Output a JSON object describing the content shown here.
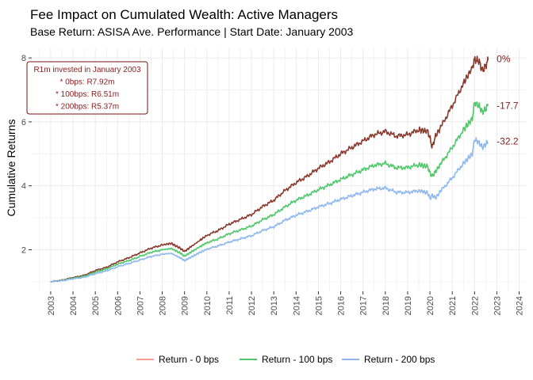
{
  "chart_data": {
    "type": "line",
    "title": "Fee Impact on Cumulated Wealth: Active Managers",
    "subtitle": "Base Return: ASISA Ave. Performance | Start Date: January 2003",
    "xlabel": "",
    "ylabel": "Cumulative Returns",
    "xlim": [
      2002.15,
      2024.3
    ],
    "ylim": [
      0.7,
      8.3
    ],
    "grid": true,
    "legend_position": "bottom",
    "x_ticks": [
      "2003",
      "2004",
      "2005",
      "2006",
      "2007",
      "2008",
      "2009",
      "2010",
      "2011",
      "2012",
      "2013",
      "2014",
      "2015",
      "2016",
      "2017",
      "2018",
      "2019",
      "2020",
      "2021",
      "2022",
      "2023",
      "2024"
    ],
    "y_ticks": [
      "2",
      "4",
      "6",
      "8"
    ],
    "annotation": {
      "lines": [
        "R1m invested in January 2003",
        "* 0bps: R7.92m",
        "* 100bps: R6.51m",
        "* 200bps: R5.37m"
      ],
      "color": "#8b1a1a"
    },
    "series": [
      {
        "name": "Return - 0 bps",
        "color": "#f8a090",
        "line_color": "#8b3a2e",
        "end_label": "0%",
        "x": [
          2003.0,
          2003.5,
          2004.0,
          2004.5,
          2005.0,
          2005.5,
          2006.0,
          2006.5,
          2007.0,
          2007.5,
          2008.0,
          2008.4,
          2008.8,
          2009.0,
          2009.3,
          2009.7,
          2010.0,
          2010.5,
          2011.0,
          2011.5,
          2012.0,
          2012.5,
          2013.0,
          2013.5,
          2014.0,
          2014.5,
          2015.0,
          2015.5,
          2016.0,
          2016.5,
          2017.0,
          2017.5,
          2018.0,
          2018.5,
          2019.0,
          2019.5,
          2019.9,
          2020.0,
          2020.1,
          2020.25,
          2020.5,
          2021.0,
          2021.5,
          2021.9,
          2022.0,
          2022.2,
          2022.35,
          2022.5,
          2022.6
        ],
        "y": [
          1.0,
          1.05,
          1.13,
          1.2,
          1.35,
          1.45,
          1.62,
          1.75,
          1.9,
          2.05,
          2.15,
          2.2,
          2.05,
          1.95,
          2.1,
          2.3,
          2.45,
          2.6,
          2.8,
          2.95,
          3.1,
          3.35,
          3.55,
          3.85,
          4.1,
          4.3,
          4.55,
          4.75,
          5.0,
          5.2,
          5.4,
          5.6,
          5.7,
          5.55,
          5.6,
          5.75,
          5.7,
          5.5,
          5.2,
          5.55,
          5.85,
          6.5,
          7.2,
          7.7,
          7.95,
          7.9,
          7.6,
          7.75,
          7.92
        ]
      },
      {
        "name": "Return - 100 bps",
        "color": "#4fc86a",
        "line_color": "#4fc86a",
        "end_label": "-17.7",
        "x": [
          2003.0,
          2003.5,
          2004.0,
          2004.5,
          2005.0,
          2005.5,
          2006.0,
          2006.5,
          2007.0,
          2007.5,
          2008.0,
          2008.4,
          2008.8,
          2009.0,
          2009.3,
          2009.7,
          2010.0,
          2010.5,
          2011.0,
          2011.5,
          2012.0,
          2012.5,
          2013.0,
          2013.5,
          2014.0,
          2014.5,
          2015.0,
          2015.5,
          2016.0,
          2016.5,
          2017.0,
          2017.5,
          2018.0,
          2018.5,
          2019.0,
          2019.5,
          2019.9,
          2020.0,
          2020.1,
          2020.25,
          2020.5,
          2021.0,
          2021.5,
          2021.9,
          2022.0,
          2022.2,
          2022.35,
          2022.5,
          2022.6
        ],
        "y": [
          1.0,
          1.04,
          1.11,
          1.17,
          1.3,
          1.4,
          1.55,
          1.66,
          1.79,
          1.92,
          2.0,
          2.04,
          1.9,
          1.8,
          1.93,
          2.1,
          2.22,
          2.34,
          2.5,
          2.62,
          2.74,
          2.94,
          3.1,
          3.34,
          3.55,
          3.7,
          3.88,
          4.03,
          4.2,
          4.35,
          4.5,
          4.64,
          4.7,
          4.56,
          4.57,
          4.66,
          4.6,
          4.4,
          4.3,
          4.45,
          4.7,
          5.2,
          5.75,
          6.1,
          6.6,
          6.5,
          6.3,
          6.4,
          6.51
        ]
      },
      {
        "name": "Return - 200 bps",
        "color": "#8fb8f0",
        "line_color": "#8fb8f0",
        "end_label": "-32.2",
        "x": [
          2003.0,
          2003.5,
          2004.0,
          2004.5,
          2005.0,
          2005.5,
          2006.0,
          2006.5,
          2007.0,
          2007.5,
          2008.0,
          2008.4,
          2008.8,
          2009.0,
          2009.3,
          2009.7,
          2010.0,
          2010.5,
          2011.0,
          2011.5,
          2012.0,
          2012.5,
          2013.0,
          2013.5,
          2014.0,
          2014.5,
          2015.0,
          2015.5,
          2016.0,
          2016.5,
          2017.0,
          2017.5,
          2018.0,
          2018.5,
          2019.0,
          2019.5,
          2019.9,
          2020.0,
          2020.1,
          2020.25,
          2020.5,
          2021.0,
          2021.5,
          2021.9,
          2022.0,
          2022.2,
          2022.35,
          2022.5,
          2022.6
        ],
        "y": [
          1.0,
          1.03,
          1.09,
          1.14,
          1.25,
          1.34,
          1.47,
          1.57,
          1.68,
          1.79,
          1.86,
          1.89,
          1.75,
          1.66,
          1.77,
          1.92,
          2.02,
          2.12,
          2.24,
          2.34,
          2.44,
          2.6,
          2.72,
          2.92,
          3.08,
          3.2,
          3.34,
          3.45,
          3.58,
          3.69,
          3.8,
          3.9,
          3.93,
          3.8,
          3.79,
          3.85,
          3.78,
          3.6,
          3.7,
          3.62,
          3.85,
          4.25,
          4.7,
          5.0,
          5.45,
          5.35,
          5.2,
          5.3,
          5.37
        ]
      }
    ]
  }
}
